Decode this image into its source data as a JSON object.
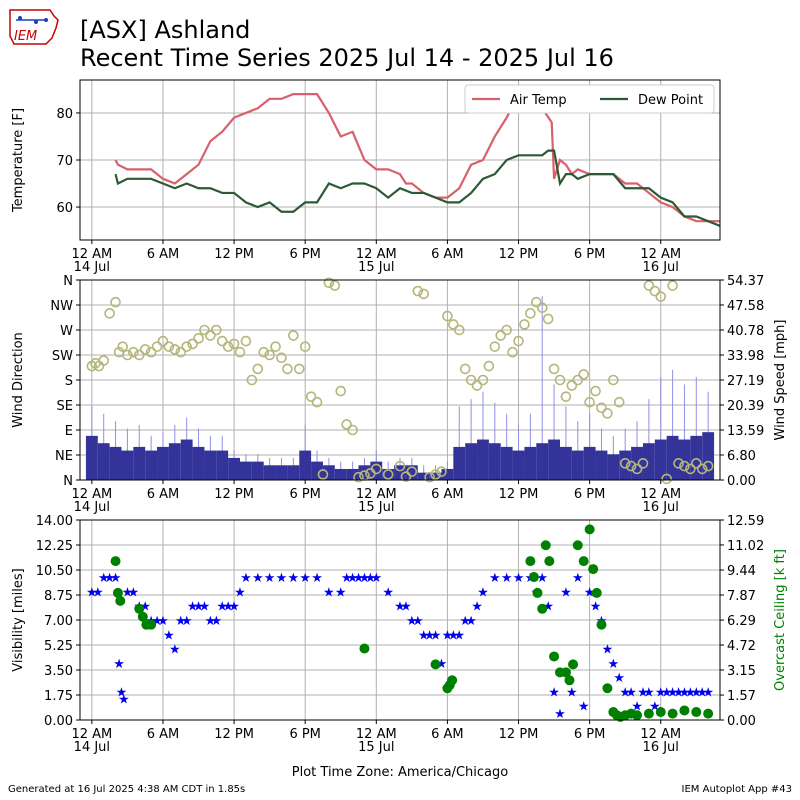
{
  "logo": {
    "text": "IEM",
    "accent": "#cc0000",
    "map_color": "#1a3fb5"
  },
  "header": {
    "title": "[ASX] Ashland",
    "subtitle": "Recent Time Series 2025 Jul 14 - 2025 Jul 16"
  },
  "footer": {
    "left": "Generated at 16 Jul 2025 4:38 AM CDT in 1.85s",
    "right": "IEM Autoplot App #43"
  },
  "chart_data": [
    {
      "type": "line",
      "ylabel": "Temperature [F]",
      "xlim": [
        -1,
        53
      ],
      "ylim": [
        53,
        87
      ],
      "yticks": [
        60,
        70,
        80
      ],
      "grid": true,
      "legend": "top-right",
      "xticks": [
        {
          "x": 0,
          "label": "12 AM",
          "sub": "14 Jul"
        },
        {
          "x": 6,
          "label": "6 AM",
          "sub": ""
        },
        {
          "x": 12,
          "label": "12 PM",
          "sub": ""
        },
        {
          "x": 18,
          "label": "6 PM",
          "sub": ""
        },
        {
          "x": 24,
          "label": "12 AM",
          "sub": "15 Jul"
        },
        {
          "x": 30,
          "label": "6 AM",
          "sub": ""
        },
        {
          "x": 36,
          "label": "12 PM",
          "sub": ""
        },
        {
          "x": 42,
          "label": "6 PM",
          "sub": ""
        },
        {
          "x": 48,
          "label": "12 AM",
          "sub": "16 Jul"
        }
      ],
      "series": [
        {
          "name": "Air Temp",
          "color": "#d9606a",
          "x": [
            2,
            2.2,
            3,
            4,
            5,
            6,
            7,
            8,
            9,
            10,
            11,
            12,
            13,
            14,
            15,
            16,
            17,
            18,
            19,
            20,
            21,
            22,
            23,
            24,
            25,
            26,
            26.5,
            27,
            28,
            29,
            30,
            31,
            32,
            33,
            34,
            35,
            36,
            37,
            38,
            38.8,
            39,
            39.5,
            40,
            40.5,
            41,
            42,
            43,
            44,
            45,
            46,
            47,
            48,
            49,
            50,
            51,
            52,
            53
          ],
          "y": [
            70,
            69,
            68,
            68,
            68,
            66,
            65,
            67,
            69,
            74,
            76,
            79,
            80,
            81,
            83,
            83,
            84,
            84,
            84,
            80,
            75,
            76,
            70,
            68,
            68,
            67,
            65,
            65,
            63,
            62,
            62,
            64,
            69,
            70,
            75,
            79,
            84,
            83,
            81,
            78,
            66,
            70,
            69,
            67,
            68,
            67,
            67,
            67,
            65,
            65,
            63,
            61,
            60,
            58,
            57,
            57,
            57
          ]
        },
        {
          "name": "Dew Point",
          "color": "#2d5a34",
          "x": [
            2,
            2.2,
            3,
            4,
            5,
            6,
            7,
            8,
            9,
            10,
            11,
            12,
            13,
            14,
            15,
            16,
            17,
            18,
            19,
            20,
            21,
            22,
            23,
            24,
            25,
            26,
            27,
            28,
            29,
            30,
            31,
            32,
            33,
            34,
            35,
            36,
            37,
            38,
            38.5,
            39,
            39.5,
            40,
            40.5,
            41,
            42,
            43,
            44,
            45,
            46,
            47,
            48,
            49,
            50,
            51,
            52,
            53
          ],
          "y": [
            67,
            65,
            66,
            66,
            66,
            65,
            64,
            65,
            64,
            64,
            63,
            63,
            61,
            60,
            61,
            59,
            59,
            61,
            61,
            65,
            64,
            65,
            65,
            64,
            62,
            64,
            63,
            63,
            62,
            61,
            61,
            63,
            66,
            67,
            70,
            71,
            71,
            71,
            72,
            72,
            65,
            67,
            67,
            66,
            67,
            67,
            67,
            64,
            64,
            64,
            62,
            61,
            58,
            58,
            57,
            56
          ]
        }
      ]
    },
    {
      "type": "scatter",
      "ylabel": "Wind Direction",
      "y2label": "Wind Speed [mph]",
      "xlim": [
        -1,
        53
      ],
      "ylim": [
        0,
        360
      ],
      "y_direction_ticks": [
        "N",
        "NE",
        "E",
        "SE",
        "S",
        "SW",
        "W",
        "NW",
        "N"
      ],
      "y2lim": [
        0,
        54.37
      ],
      "y2ticks": [
        "0.00",
        "6.80",
        "13.59",
        "20.39",
        "27.19",
        "33.98",
        "40.78",
        "47.58",
        "54.37"
      ],
      "grid": true,
      "speed_bars": {
        "color": "#33339a",
        "gust_color": "#8f8fe6",
        "hours": [
          0,
          1,
          2,
          3,
          4,
          5,
          6,
          7,
          8,
          9,
          10,
          11,
          12,
          13,
          14,
          15,
          16,
          17,
          18,
          19,
          20,
          21,
          22,
          23,
          24,
          25,
          26,
          27,
          28,
          29,
          30,
          31,
          32,
          33,
          34,
          35,
          36,
          37,
          38,
          39,
          40,
          41,
          42,
          43,
          44,
          45,
          46,
          47,
          48,
          49,
          50,
          51,
          52
        ],
        "speed": [
          12,
          10,
          9,
          8,
          9,
          8,
          9,
          10,
          11,
          9,
          8,
          8,
          6,
          5,
          5,
          4,
          4,
          4,
          8,
          5,
          4,
          3,
          3,
          4,
          5,
          3,
          4,
          4,
          2,
          2,
          3,
          9,
          10,
          11,
          10,
          9,
          8,
          9,
          10,
          11,
          9,
          8,
          9,
          8,
          7,
          8,
          9,
          10,
          11,
          12,
          11,
          12,
          13
        ],
        "gust": [
          20,
          18,
          16,
          14,
          15,
          12,
          13,
          15,
          17,
          14,
          12,
          12,
          8,
          7,
          7,
          6,
          6,
          6,
          15,
          8,
          6,
          5,
          5,
          6,
          8,
          5,
          6,
          6,
          4,
          4,
          5,
          20,
          22,
          24,
          21,
          18,
          15,
          18,
          50,
          26,
          20,
          16,
          18,
          14,
          12,
          14,
          16,
          22,
          28,
          30,
          26,
          28,
          24
        ]
      },
      "direction_points": {
        "color": "#b5b67a",
        "x": [
          0,
          0.3,
          0.6,
          1,
          1.5,
          2,
          2.3,
          2.6,
          3,
          3.5,
          4,
          4.5,
          5,
          5.5,
          6,
          6.5,
          7,
          7.5,
          8,
          8.5,
          9,
          9.5,
          10,
          10.5,
          11,
          11.5,
          12,
          12.5,
          13,
          13.5,
          14,
          14.5,
          15,
          15.5,
          16,
          16.5,
          17,
          17.5,
          18,
          18.5,
          19,
          19.5,
          20,
          20.5,
          21,
          21.5,
          22,
          22.5,
          23,
          23.5,
          24,
          25,
          26,
          26.5,
          27,
          27.5,
          28,
          28.5,
          29,
          29.5,
          30,
          30.5,
          31,
          31.5,
          32,
          32.5,
          33,
          33.5,
          34,
          34.5,
          35,
          35.5,
          36,
          36.5,
          37,
          37.5,
          38,
          38.5,
          39,
          39.5,
          40,
          40.5,
          41,
          41.5,
          42,
          42.5,
          43,
          43.5,
          44,
          44.5,
          45,
          45.5,
          46,
          46.5,
          47,
          47.5,
          48,
          48.5,
          49,
          49.5,
          50,
          50.5,
          51,
          51.5,
          52
        ],
        "y": [
          205,
          210,
          205,
          215,
          300,
          320,
          230,
          240,
          225,
          230,
          225,
          235,
          230,
          240,
          250,
          240,
          235,
          230,
          240,
          245,
          255,
          270,
          260,
          270,
          250,
          240,
          245,
          230,
          250,
          180,
          200,
          230,
          225,
          240,
          220,
          200,
          260,
          200,
          240,
          150,
          140,
          10,
          355,
          350,
          160,
          100,
          90,
          5,
          8,
          12,
          20,
          10,
          25,
          6,
          15,
          340,
          335,
          5,
          10,
          15,
          295,
          280,
          270,
          200,
          180,
          170,
          180,
          205,
          240,
          260,
          270,
          230,
          250,
          280,
          300,
          320,
          310,
          290,
          200,
          180,
          150,
          170,
          180,
          190,
          140,
          160,
          130,
          120,
          180,
          140,
          30,
          25,
          20,
          30,
          350,
          340,
          330,
          2,
          350,
          30,
          25,
          20,
          30,
          20,
          25
        ]
      },
      "xticks": [
        {
          "x": 0,
          "label": "12 AM",
          "sub": "14 Jul"
        },
        {
          "x": 6,
          "label": "6 AM",
          "sub": ""
        },
        {
          "x": 12,
          "label": "12 PM",
          "sub": ""
        },
        {
          "x": 18,
          "label": "6 PM",
          "sub": ""
        },
        {
          "x": 24,
          "label": "12 AM",
          "sub": "15 Jul"
        },
        {
          "x": 30,
          "label": "6 AM",
          "sub": ""
        },
        {
          "x": 36,
          "label": "12 PM",
          "sub": ""
        },
        {
          "x": 42,
          "label": "6 PM",
          "sub": ""
        },
        {
          "x": 48,
          "label": "12 AM",
          "sub": "16 Jul"
        }
      ]
    },
    {
      "type": "scatter",
      "ylabel": "Visibility [miles]",
      "y2label": "Overcast Ceiling [k ft]",
      "xlabel": "Plot Time Zone: America/Chicago",
      "xlim": [
        -1,
        53
      ],
      "ylim": [
        0,
        14
      ],
      "yticks": [
        "0.00",
        "1.75",
        "3.50",
        "5.25",
        "7.00",
        "8.75",
        "10.50",
        "12.25",
        "14.00"
      ],
      "y2lim": [
        0,
        12.59
      ],
      "y2ticks": [
        "0.00",
        "1.57",
        "3.15",
        "4.72",
        "6.29",
        "7.87",
        "9.44",
        "11.02",
        "12.59"
      ],
      "y2color": "#008000",
      "grid": true,
      "visibility": {
        "color": "#0000ee",
        "x": [
          0,
          0.5,
          1,
          1.5,
          2,
          2.3,
          2.5,
          2.7,
          3,
          3.5,
          4,
          4.5,
          5,
          5.5,
          6,
          6.5,
          7,
          7.5,
          8,
          8.5,
          9,
          9.5,
          10,
          10.5,
          11,
          11.5,
          12,
          12.5,
          13,
          14,
          15,
          16,
          17,
          18,
          19,
          20,
          21,
          21.5,
          22,
          22.5,
          23,
          23.5,
          24,
          25,
          26,
          26.5,
          27,
          27.5,
          28,
          28.5,
          29,
          29.5,
          30,
          30.5,
          31,
          31.5,
          32,
          32.5,
          33,
          34,
          35,
          36,
          37,
          37.5,
          38,
          38.5,
          39,
          39.5,
          40,
          40.5,
          41,
          41.5,
          42,
          42.5,
          43,
          43.5,
          44,
          44.5,
          45,
          45.5,
          46,
          46.5,
          47,
          47.5,
          48,
          48.5,
          49,
          49.5,
          50,
          50.5,
          51,
          51.5,
          52
        ],
        "y": [
          9,
          9,
          10,
          10,
          10,
          4,
          2,
          1.5,
          9,
          9,
          8,
          8,
          7,
          7,
          7,
          6,
          5,
          7,
          7,
          8,
          8,
          8,
          7,
          7,
          8,
          8,
          8,
          9,
          10,
          10,
          10,
          10,
          10,
          10,
          10,
          9,
          9,
          10,
          10,
          10,
          10,
          10,
          10,
          9,
          8,
          8,
          7,
          7,
          6,
          6,
          6,
          4,
          6,
          6,
          6,
          7,
          7,
          8,
          9,
          10,
          10,
          10,
          10,
          9,
          10,
          8,
          2,
          0.5,
          9,
          2,
          10,
          1,
          9,
          8,
          7,
          5,
          4,
          3,
          2,
          2,
          1,
          2,
          2,
          1,
          2,
          2,
          2,
          2,
          2,
          2,
          2,
          2,
          2
        ]
      },
      "ceiling": {
        "color": "#008000",
        "x": [
          2,
          2.2,
          2.4,
          4,
          4.3,
          4.6,
          5,
          23,
          29,
          30,
          30.2,
          30.4,
          37,
          37.3,
          37.6,
          38,
          38.3,
          38.6,
          39,
          39.5,
          40,
          40.3,
          40.6,
          41,
          41.5,
          42,
          42.3,
          42.6,
          43,
          43.5,
          44,
          44.3,
          44.6,
          45,
          45.5,
          46,
          47,
          48,
          49,
          50,
          51,
          52
        ],
        "y": [
          10,
          8,
          7.5,
          7,
          6.5,
          6,
          6,
          4.5,
          3.5,
          2,
          2.2,
          2.5,
          10,
          9,
          8,
          7,
          11,
          10,
          4,
          3,
          3,
          2.5,
          3.5,
          11,
          10,
          12,
          9.5,
          8,
          6,
          2,
          0.5,
          0.3,
          0.2,
          0.3,
          0.4,
          0.3,
          0.4,
          0.5,
          0.4,
          0.6,
          0.5,
          0.4
        ]
      },
      "xticks": [
        {
          "x": 0,
          "label": "12 AM",
          "sub": "14 Jul"
        },
        {
          "x": 6,
          "label": "6 AM",
          "sub": ""
        },
        {
          "x": 12,
          "label": "12 PM",
          "sub": ""
        },
        {
          "x": 18,
          "label": "6 PM",
          "sub": ""
        },
        {
          "x": 24,
          "label": "12 AM",
          "sub": "15 Jul"
        },
        {
          "x": 30,
          "label": "6 AM",
          "sub": ""
        },
        {
          "x": 36,
          "label": "12 PM",
          "sub": ""
        },
        {
          "x": 42,
          "label": "6 PM",
          "sub": ""
        },
        {
          "x": 48,
          "label": "12 AM",
          "sub": "16 Jul"
        }
      ]
    }
  ]
}
